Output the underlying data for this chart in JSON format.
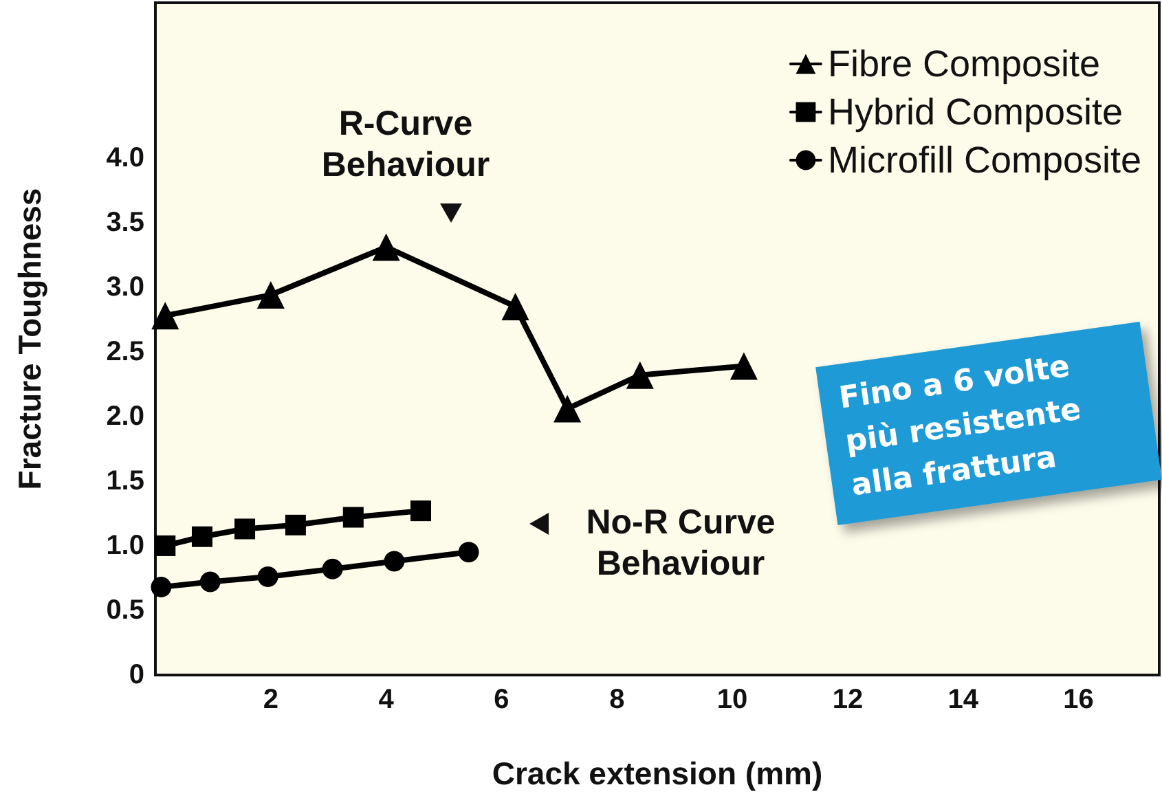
{
  "chart_data": {
    "type": "line",
    "xlabel": "Crack extension (mm)",
    "ylabel": "Fracture Toughness",
    "xlim": [
      0,
      17.4
    ],
    "xticks": [
      2,
      4,
      6,
      8,
      10,
      12,
      14,
      16
    ],
    "ylim": [
      0,
      5.2
    ],
    "yticks": [
      0,
      0.5,
      {
        "value": 1,
        "label": "1.0"
      },
      1.5,
      {
        "value": 2,
        "label": "2.0"
      },
      2.5,
      {
        "value": 3,
        "label": "3.0"
      },
      3.5,
      {
        "value": 4,
        "label": "4.0"
      }
    ],
    "grid": false,
    "legend": "top right",
    "line_style": "solid",
    "series": [
      {
        "name": "Fibre Composite",
        "color": "#000000",
        "marker": "triangle",
        "x": [
          0.17,
          2.0,
          4.0,
          6.24,
          7.14,
          8.4,
          10.2
        ],
        "values": [
          2.78,
          2.94,
          3.31,
          2.85,
          2.06,
          2.32,
          2.39
        ]
      },
      {
        "name": "Hybrid Composite",
        "color": "#000000",
        "marker": "square",
        "x": [
          0.17,
          0.81,
          1.55,
          2.43,
          3.43,
          4.6
        ],
        "values": [
          1.0,
          1.07,
          1.13,
          1.16,
          1.22,
          1.27
        ]
      },
      {
        "name": "Microfill Composite",
        "color": "#000000",
        "marker": "circle",
        "x": [
          0.1,
          0.95,
          1.95,
          3.07,
          4.14,
          5.43
        ],
        "values": [
          0.68,
          0.72,
          0.76,
          0.82,
          0.88,
          0.95
        ]
      }
    ],
    "annotations": [
      "R-Curve Behaviour",
      "No-R Curve Behaviour",
      "Fino a 6 volte più resistente alla frattura"
    ]
  }
}
